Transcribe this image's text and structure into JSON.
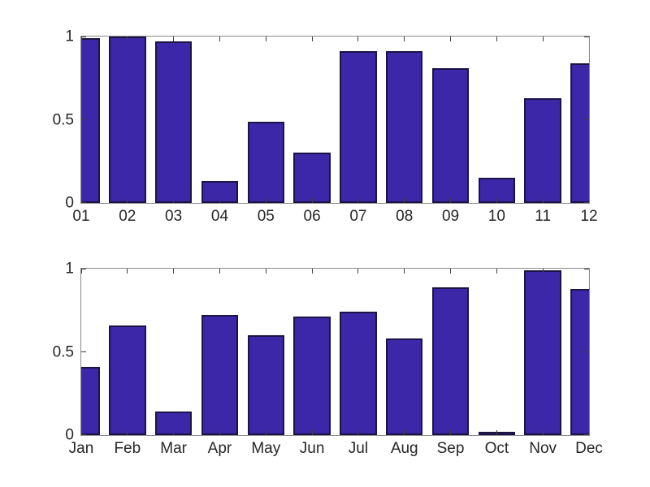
{
  "colors": {
    "background": "#ffffff",
    "bar_face": "#3B27A8",
    "bar_edge": "#1c1446",
    "axis_box": "#8a8a8a",
    "tick_mark": "#3f3f3f",
    "tick_label": "#262626"
  },
  "chart_data": [
    {
      "type": "bar",
      "title": "",
      "xlabel": "",
      "ylabel": "",
      "categories": [
        "01",
        "02",
        "03",
        "04",
        "05",
        "06",
        "07",
        "08",
        "09",
        "10",
        "11",
        "12"
      ],
      "values": [
        0.99,
        1.0,
        0.97,
        0.13,
        0.49,
        0.3,
        0.91,
        0.91,
        0.81,
        0.15,
        0.63,
        0.84
      ],
      "ylim": [
        0,
        1
      ],
      "yticks": [
        {
          "value": 0,
          "label": "0"
        },
        {
          "value": 0.5,
          "label": "0.5"
        },
        {
          "value": 1,
          "label": "1"
        }
      ],
      "xlim": [
        1,
        12
      ],
      "bar_width_fraction": 0.8,
      "grid": false,
      "legend_position": "none",
      "edge_bars_clipped_half": true
    },
    {
      "type": "bar",
      "title": "",
      "xlabel": "",
      "ylabel": "",
      "categories": [
        "Jan",
        "Feb",
        "Mar",
        "Apr",
        "May",
        "Jun",
        "Jul",
        "Aug",
        "Sep",
        "Oct",
        "Nov",
        "Dec"
      ],
      "values": [
        0.41,
        0.66,
        0.14,
        0.72,
        0.6,
        0.71,
        0.74,
        0.58,
        0.89,
        0.015,
        0.99,
        0.88
      ],
      "ylim": [
        0,
        1
      ],
      "yticks": [
        {
          "value": 0,
          "label": "0"
        },
        {
          "value": 0.5,
          "label": "0.5"
        },
        {
          "value": 1,
          "label": "1"
        }
      ],
      "xlim": [
        1,
        12
      ],
      "bar_width_fraction": 0.8,
      "grid": false,
      "legend_position": "none",
      "edge_bars_clipped_half": true
    }
  ]
}
